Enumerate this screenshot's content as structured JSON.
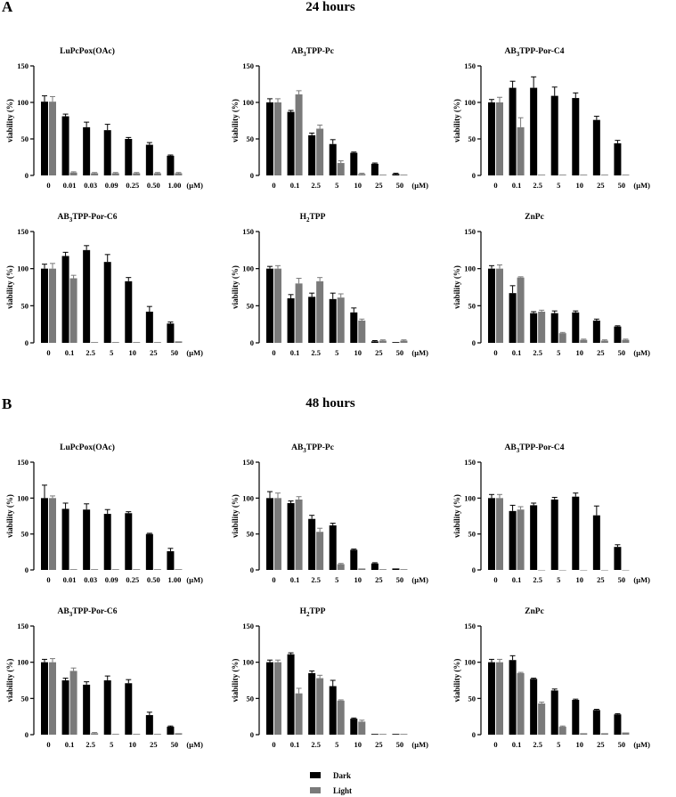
{
  "panels": [
    {
      "letter": "A",
      "title": "24 hours"
    },
    {
      "letter": "B",
      "title": "48 hours"
    }
  ],
  "legend": [
    {
      "label": "Dark",
      "color": "#000000"
    },
    {
      "label": "Light",
      "color": "#7a7a7a"
    }
  ],
  "chart_data": [
    {
      "type": "bar",
      "panel": "A",
      "title": "LuPcPox(OAc)",
      "ylabel": "viability (%)",
      "ylim": [
        0,
        150
      ],
      "yticks": [
        0,
        50,
        100,
        150
      ],
      "categories": [
        "0",
        "0.01",
        "0.03",
        "0.09",
        "0.25",
        "0.50",
        "1.00"
      ],
      "unit": "(μM)",
      "series": [
        {
          "name": "Dark",
          "values": [
            101,
            81,
            66,
            62,
            50,
            42,
            27
          ],
          "errors": [
            8,
            3,
            7,
            8,
            2,
            3,
            1
          ]
        },
        {
          "name": "Light",
          "values": [
            101,
            4,
            3,
            3,
            3,
            3,
            3
          ],
          "errors": [
            7,
            1,
            1,
            1,
            1,
            1,
            1
          ]
        }
      ]
    },
    {
      "type": "bar",
      "panel": "A",
      "title": "AB3TPP-Pc",
      "ylabel": "viability (%)",
      "ylim": [
        0,
        150
      ],
      "yticks": [
        0,
        50,
        100,
        150
      ],
      "categories": [
        "0",
        "0.1",
        "2.5",
        "5",
        "10",
        "25",
        "50"
      ],
      "unit": "(μM)",
      "series": [
        {
          "name": "Dark",
          "values": [
            100,
            87,
            55,
            43,
            31,
            16,
            2
          ],
          "errors": [
            5,
            2,
            3,
            6,
            1,
            1,
            1
          ]
        },
        {
          "name": "Light",
          "values": [
            100,
            111,
            64,
            17,
            2,
            1,
            1
          ],
          "errors": [
            5,
            5,
            5,
            3,
            1,
            0,
            0
          ]
        }
      ]
    },
    {
      "type": "bar",
      "panel": "A",
      "title": "AB3TPP-Por-C4",
      "ylabel": "viability (%)",
      "ylim": [
        0,
        150
      ],
      "yticks": [
        0,
        50,
        100,
        150
      ],
      "categories": [
        "0",
        "0.1",
        "2.5",
        "5",
        "10",
        "25",
        "50"
      ],
      "unit": "(μM)",
      "series": [
        {
          "name": "Dark",
          "values": [
            100,
            120,
            120,
            109,
            106,
            76,
            44
          ],
          "errors": [
            4,
            9,
            15,
            12,
            7,
            5,
            4
          ]
        },
        {
          "name": "Light",
          "values": [
            100,
            66,
            1,
            1,
            1,
            1,
            1
          ],
          "errors": [
            7,
            13,
            0,
            0,
            0,
            0,
            0
          ]
        }
      ]
    },
    {
      "type": "bar",
      "panel": "A",
      "title": "AB3TPP-Por-C6",
      "ylabel": "viability (%)",
      "ylim": [
        0,
        150
      ],
      "yticks": [
        0,
        50,
        100,
        150
      ],
      "categories": [
        "0",
        "0.1",
        "2.5",
        "5",
        "10",
        "25",
        "50"
      ],
      "unit": "(μM)",
      "series": [
        {
          "name": "Dark",
          "values": [
            100,
            117,
            125,
            109,
            83,
            42,
            26
          ],
          "errors": [
            6,
            5,
            6,
            10,
            5,
            7,
            2
          ]
        },
        {
          "name": "Light",
          "values": [
            100,
            87,
            1,
            1,
            1,
            1,
            2
          ],
          "errors": [
            7,
            4,
            0,
            0,
            0,
            0,
            0
          ]
        }
      ]
    },
    {
      "type": "bar",
      "panel": "A",
      "title": "H2TPP",
      "ylabel": "viability (%)",
      "ylim": [
        0,
        150
      ],
      "yticks": [
        0,
        50,
        100,
        150
      ],
      "categories": [
        "0",
        "0.1",
        "2.5",
        "5",
        "10",
        "25",
        "50"
      ],
      "unit": "(μM)",
      "series": [
        {
          "name": "Dark",
          "values": [
            100,
            60,
            62,
            59,
            41,
            2,
            1
          ],
          "errors": [
            3,
            5,
            5,
            8,
            6,
            1,
            0
          ]
        },
        {
          "name": "Light",
          "values": [
            100,
            80,
            83,
            61,
            30,
            3,
            3
          ],
          "errors": [
            4,
            7,
            5,
            5,
            2,
            1,
            1
          ]
        }
      ]
    },
    {
      "type": "bar",
      "panel": "A",
      "title": "ZnPc",
      "ylabel": "viability (%)",
      "ylim": [
        0,
        150
      ],
      "yticks": [
        0,
        50,
        100,
        150
      ],
      "categories": [
        "0",
        "0.1",
        "2.5",
        "5",
        "10",
        "25",
        "50"
      ],
      "unit": "(μM)",
      "series": [
        {
          "name": "Dark",
          "values": [
            100,
            67,
            40,
            40,
            41,
            30,
            22
          ],
          "errors": [
            4,
            10,
            2,
            3,
            2,
            2,
            1
          ]
        },
        {
          "name": "Light",
          "values": [
            100,
            88,
            42,
            13,
            4,
            3,
            4
          ],
          "errors": [
            5,
            1,
            2,
            1,
            1,
            1,
            1
          ]
        }
      ]
    },
    {
      "type": "bar",
      "panel": "B",
      "title": "LuPcPox(OAc)",
      "ylabel": "viability (%)",
      "ylim": [
        0,
        150
      ],
      "yticks": [
        0,
        50,
        100,
        150
      ],
      "categories": [
        "0",
        "0.01",
        "0.03",
        "0.09",
        "0.25",
        "0.50",
        "1.00"
      ],
      "unit": "(μM)",
      "series": [
        {
          "name": "Dark",
          "values": [
            100,
            85,
            84,
            78,
            79,
            50,
            26
          ],
          "errors": [
            18,
            8,
            8,
            6,
            2,
            1,
            4
          ]
        },
        {
          "name": "Light",
          "values": [
            100,
            1,
            1,
            1,
            1,
            1,
            1
          ],
          "errors": [
            3,
            0,
            0,
            0,
            0,
            0,
            0
          ]
        }
      ]
    },
    {
      "type": "bar",
      "panel": "B",
      "title": "AB3TPP-Pc",
      "ylabel": "viability (%)",
      "ylim": [
        0,
        150
      ],
      "yticks": [
        0,
        50,
        100,
        150
      ],
      "categories": [
        "0",
        "0.1",
        "2.5",
        "5",
        "10",
        "25",
        "50"
      ],
      "unit": "(μM)",
      "series": [
        {
          "name": "Dark",
          "values": [
            100,
            93,
            71,
            62,
            28,
            9,
            2
          ],
          "errors": [
            9,
            3,
            5,
            3,
            1,
            1,
            0
          ]
        },
        {
          "name": "Light",
          "values": [
            100,
            98,
            53,
            8,
            2,
            1,
            1
          ],
          "errors": [
            7,
            4,
            5,
            1,
            0,
            0,
            0
          ]
        }
      ]
    },
    {
      "type": "bar",
      "panel": "B",
      "title": "AB3TPP-Por-C4",
      "ylabel": "viability (%)",
      "ylim": [
        0,
        150
      ],
      "yticks": [
        0,
        50,
        100,
        150
      ],
      "categories": [
        "0",
        "0.1",
        "2.5",
        "5",
        "10",
        "25",
        "50"
      ],
      "unit": "(μM)",
      "series": [
        {
          "name": "Dark",
          "values": [
            100,
            82,
            90,
            98,
            102,
            76,
            32
          ],
          "errors": [
            5,
            8,
            3,
            3,
            5,
            13,
            3
          ]
        },
        {
          "name": "Light",
          "values": [
            100,
            84,
            0,
            0,
            0,
            0,
            0
          ],
          "errors": [
            5,
            4,
            0,
            0,
            0,
            0,
            0
          ]
        }
      ]
    },
    {
      "type": "bar",
      "panel": "B",
      "title": "AB3TPP-Por-C6",
      "ylabel": "viability (%)",
      "ylim": [
        0,
        150
      ],
      "yticks": [
        0,
        50,
        100,
        150
      ],
      "categories": [
        "0",
        "0.1",
        "2.5",
        "5",
        "10",
        "25",
        "50"
      ],
      "unit": "(μM)",
      "series": [
        {
          "name": "Dark",
          "values": [
            100,
            75,
            69,
            75,
            71,
            27,
            11
          ],
          "errors": [
            4,
            3,
            4,
            6,
            5,
            4,
            1
          ]
        },
        {
          "name": "Light",
          "values": [
            100,
            88,
            2,
            1,
            1,
            1,
            2
          ],
          "errors": [
            5,
            4,
            1,
            0,
            0,
            0,
            0
          ]
        }
      ]
    },
    {
      "type": "bar",
      "panel": "B",
      "title": "H2TPP",
      "ylabel": "viability (%)",
      "ylim": [
        0,
        150
      ],
      "yticks": [
        0,
        50,
        100,
        150
      ],
      "categories": [
        "0",
        "0.1",
        "2.5",
        "5",
        "10",
        "25",
        "50"
      ],
      "unit": "(μM)",
      "series": [
        {
          "name": "Dark",
          "values": [
            100,
            111,
            85,
            67,
            22,
            1,
            1
          ],
          "errors": [
            3,
            2,
            3,
            8,
            1,
            0,
            0
          ]
        },
        {
          "name": "Light",
          "values": [
            100,
            57,
            78,
            47,
            18,
            1,
            1
          ],
          "errors": [
            3,
            7,
            4,
            1,
            2,
            0,
            0
          ]
        }
      ]
    },
    {
      "type": "bar",
      "panel": "B",
      "title": "ZnPc",
      "ylabel": "viability (%)",
      "ylim": [
        0,
        150
      ],
      "yticks": [
        0,
        50,
        100,
        150
      ],
      "categories": [
        "0",
        "0.1",
        "2.5",
        "5",
        "10",
        "25",
        "50"
      ],
      "unit": "(μM)",
      "series": [
        {
          "name": "Dark",
          "values": [
            100,
            103,
            77,
            61,
            48,
            34,
            28
          ],
          "errors": [
            4,
            6,
            1,
            2,
            1,
            1,
            1
          ]
        },
        {
          "name": "Light",
          "values": [
            100,
            85,
            43,
            11,
            2,
            2,
            3
          ],
          "errors": [
            4,
            1,
            2,
            1,
            0,
            0,
            0
          ]
        }
      ]
    }
  ]
}
